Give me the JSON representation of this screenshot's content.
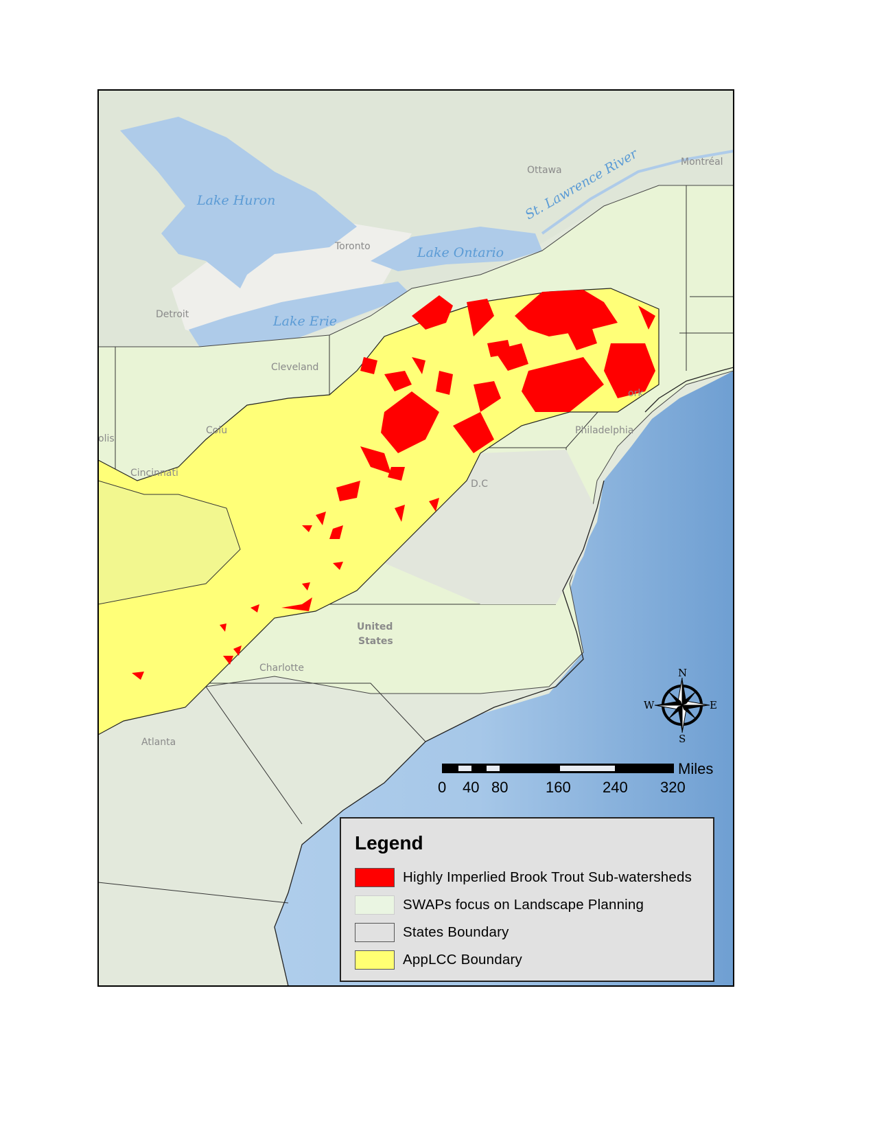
{
  "map": {
    "place_labels": {
      "ottawa": "Ottawa",
      "montreal": "Montréal",
      "st_lawrence": "St. Lawrence River",
      "lake_huron": "Lake Huron",
      "toronto": "Toronto",
      "lake_ontario": "Lake Ontario",
      "detroit": "Detroit",
      "lake_erie": "Lake Erie",
      "cleveland": "Cleveland",
      "columbus": "Colu",
      "indianapolis": "olis",
      "cincinnati": "Cincinnati",
      "new_york": "ork",
      "philadelphia": "Philadelphia",
      "dc": "D.C",
      "united": "United",
      "states": "States",
      "charlotte": "Charlotte",
      "atlanta": "Atlanta"
    },
    "compass": {
      "n": "N",
      "s": "S",
      "e": "E",
      "w": "W"
    },
    "scale_bar": {
      "unit": "Miles",
      "ticks": [
        "0",
        "40",
        "80",
        "160",
        "240",
        "320"
      ]
    },
    "colors": {
      "red_subwatersheds": "#ff0000",
      "swaps": "#eaf3dc",
      "states": "#e1e1e1",
      "applcc": "#ffff73",
      "water": "#b3cfea",
      "land": "#e4ebdd"
    }
  },
  "legend": {
    "title": "Legend",
    "items": [
      {
        "label": "Highly Imperlied Brook Trout Sub-watersheds",
        "color": "#ff0000"
      },
      {
        "label": "SWAPs focus on Landscape Planning",
        "color": "#eaf5e2"
      },
      {
        "label": "States Boundary",
        "color": "#e1e1e1"
      },
      {
        "label": "AppLCC Boundary",
        "color": "#ffff73"
      }
    ]
  }
}
